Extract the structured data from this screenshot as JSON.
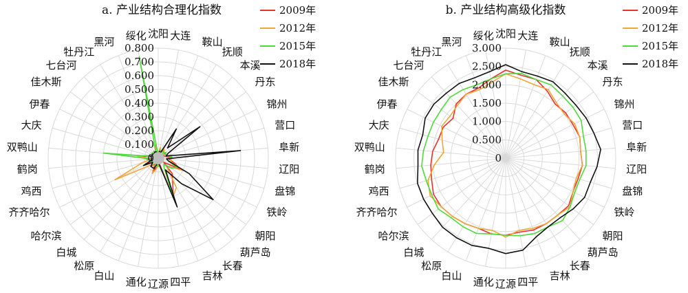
{
  "cities": [
    "沈阳",
    "大连",
    "鞍山",
    "抚顺",
    "本溪",
    "丹东",
    "锦州",
    "营口",
    "阜新",
    "辽阳",
    "盘锦",
    "铁岭",
    "朝阳",
    "葫芦岛",
    "长春",
    "吉林",
    "四平",
    "辽源",
    "通化",
    "白山",
    "松原",
    "白城",
    "哈尔滨",
    "齐齐哈尔",
    "鸡西",
    "鹤岗",
    "双鸭山",
    "大庆",
    "伊春",
    "佳木斯",
    "七台河",
    "牡丹江",
    "黑河",
    "绥化"
  ],
  "legend_colors": {
    "2009年": "#e8312f",
    "2012年": "#f0a536",
    "2015年": "#4fd93a",
    "2018年": "#111111"
  },
  "chart_data": [
    {
      "type": "radar",
      "title": "a. 产业结构合理化指数",
      "tick_labels": [
        "0",
        "0.100",
        "0.200",
        "0.300",
        "0.400",
        "0.500",
        "0.600",
        "0.700",
        "0.800"
      ],
      "rmax": 0.8,
      "categories_ref": "cities",
      "series": [
        {
          "name": "2009年",
          "color": "#e8312f",
          "values": [
            0.02,
            0.05,
            0.04,
            0.08,
            0.05,
            0.06,
            0.04,
            0.05,
            0.08,
            0.08,
            0.12,
            0.18,
            0.05,
            0.15,
            0.2,
            0.3,
            0.04,
            0.05,
            0.07,
            0.1,
            0.05,
            0.08,
            0.05,
            0.09,
            0.05,
            0.08,
            0.12,
            0.06,
            0.04,
            0.06,
            0.05,
            0.06,
            0.05,
            0.05
          ]
        },
        {
          "name": "2012年",
          "color": "#f0a536",
          "values": [
            0.03,
            0.08,
            0.05,
            0.08,
            0.06,
            0.05,
            0.06,
            0.06,
            0.1,
            0.09,
            0.1,
            0.2,
            0.1,
            0.1,
            0.25,
            0.3,
            0.05,
            0.05,
            0.08,
            0.12,
            0.06,
            0.06,
            0.1,
            0.35,
            0.12,
            0.05,
            0.15,
            0.07,
            0.04,
            0.05,
            0.05,
            0.06,
            0.05,
            0.1
          ]
        },
        {
          "name": "2015年",
          "color": "#4fd93a",
          "values": [
            0.02,
            0.06,
            0.05,
            0.06,
            0.05,
            0.07,
            0.06,
            0.06,
            0.1,
            0.06,
            0.08,
            0.15,
            0.12,
            0.06,
            0.08,
            0.3,
            0.06,
            0.06,
            0.05,
            0.05,
            0.06,
            0.06,
            0.05,
            0.05,
            0.05,
            0.06,
            0.4,
            0.05,
            0.04,
            0.06,
            0.05,
            0.06,
            0.05,
            0.75
          ]
        },
        {
          "name": "2018年",
          "color": "#111111",
          "values": [
            0.03,
            0.05,
            0.04,
            0.25,
            0.1,
            0.38,
            0.08,
            0.06,
            0.6,
            0.06,
            0.08,
            0.25,
            0.5,
            0.25,
            0.1,
            0.38,
            0.05,
            0.04,
            0.04,
            0.08,
            0.08,
            0.08,
            0.05,
            0.12,
            0.05,
            0.05,
            0.05,
            0.06,
            0.04,
            0.05,
            0.04,
            0.05,
            0.05,
            0.04
          ]
        }
      ]
    },
    {
      "type": "radar",
      "title": "b. 产业结构高级化指数",
      "tick_labels": [
        "0",
        "0.500",
        "1.000",
        "1.500",
        "2.000",
        "2.500",
        "3.000"
      ],
      "rmax": 3.0,
      "categories_ref": "cities",
      "series": [
        {
          "name": "2009年",
          "color": "#e8312f",
          "values": [
            2.4,
            2.3,
            2.3,
            2.15,
            2.0,
            2.05,
            2.05,
            2.1,
            2.05,
            2.1,
            2.05,
            2.05,
            2.15,
            2.1,
            2.1,
            2.1,
            2.05,
            2.1,
            2.1,
            2.05,
            2.1,
            2.15,
            2.2,
            2.2,
            2.1,
            2.05,
            2.0,
            1.9,
            1.9,
            1.8,
            2.0,
            2.05,
            2.05,
            2.2
          ]
        },
        {
          "name": "2012年",
          "color": "#f0a536",
          "values": [
            2.3,
            2.2,
            2.15,
            2.2,
            2.05,
            2.0,
            2.1,
            2.1,
            2.05,
            2.1,
            2.0,
            2.05,
            2.2,
            2.1,
            2.1,
            2.05,
            2.0,
            2.15,
            2.0,
            2.05,
            2.1,
            2.15,
            2.2,
            2.3,
            2.2,
            1.95,
            1.7,
            1.8,
            1.95,
            1.9,
            1.95,
            2.05,
            2.0,
            2.1
          ]
        },
        {
          "name": "2015年",
          "color": "#4fd93a",
          "values": [
            2.3,
            2.35,
            2.3,
            2.35,
            2.3,
            2.3,
            2.3,
            2.2,
            2.2,
            2.2,
            2.1,
            2.1,
            2.2,
            2.3,
            2.2,
            2.2,
            2.15,
            2.1,
            2.1,
            2.2,
            2.2,
            2.2,
            2.3,
            2.25,
            2.25,
            2.3,
            2.25,
            2.2,
            2.2,
            2.2,
            2.25,
            2.2,
            2.15,
            2.2
          ]
        },
        {
          "name": "2018年",
          "color": "#111111",
          "values": [
            2.55,
            2.4,
            2.4,
            2.45,
            2.4,
            2.4,
            2.45,
            2.5,
            2.6,
            2.5,
            2.4,
            2.4,
            2.3,
            2.2,
            2.2,
            2.3,
            2.55,
            2.6,
            2.5,
            2.55,
            2.55,
            2.55,
            2.5,
            2.5,
            2.5,
            2.4,
            2.4,
            2.35,
            2.45,
            2.45,
            2.4,
            2.4,
            2.35,
            2.4
          ]
        }
      ]
    }
  ]
}
